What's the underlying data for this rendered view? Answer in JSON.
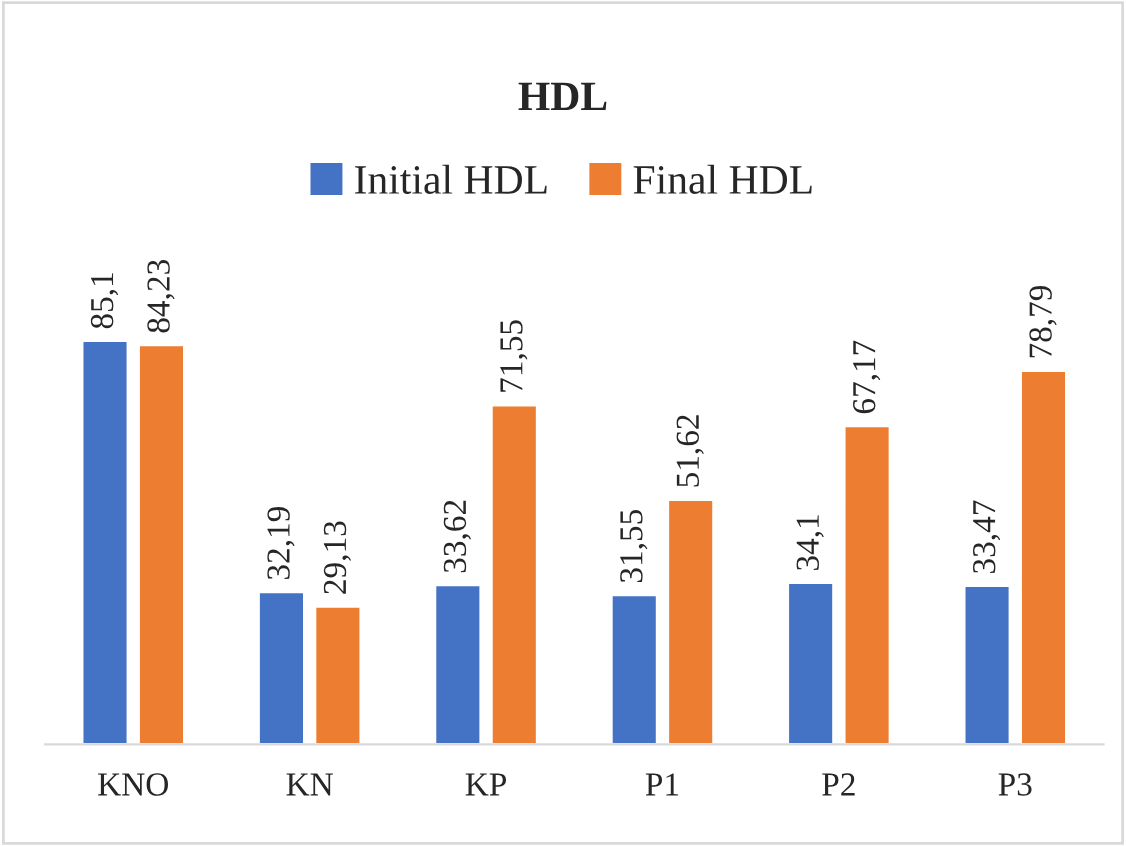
{
  "chart_data": {
    "type": "bar",
    "title": "HDL",
    "categories": [
      "KNO",
      "KN",
      "KP",
      "P1",
      "P2",
      "P3"
    ],
    "series": [
      {
        "name": "Initial HDL",
        "color": "#4472c4",
        "values": [
          85.1,
          32.19,
          33.62,
          31.55,
          34.1,
          33.47
        ],
        "value_labels": [
          "85,1",
          "32,19",
          "33,62",
          "31,55",
          "34,1",
          "33,47"
        ]
      },
      {
        "name": "Final HDL",
        "color": "#ed7d31",
        "values": [
          84.23,
          29.13,
          71.55,
          51.62,
          67.17,
          78.79
        ],
        "value_labels": [
          "84,23",
          "29,13",
          "71,55",
          "51,62",
          "67,17",
          "78,79"
        ]
      }
    ],
    "legend": "top",
    "grid": false
  }
}
